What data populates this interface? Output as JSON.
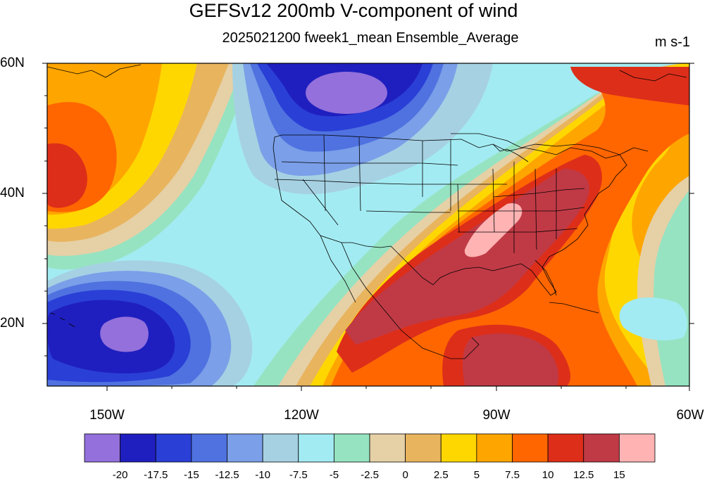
{
  "title": "GEFSv12 200mb V-component of wind",
  "subtitle": "2025021200 fweek1_mean Ensemble_Average",
  "units": "m s-1",
  "lat_labels": [
    "60N",
    "40N",
    "20N"
  ],
  "lon_labels": [
    "150W",
    "120W",
    "90W",
    "60W"
  ],
  "colorbar": {
    "colors": [
      "#9370db",
      "#1f1fbf",
      "#2a3fd6",
      "#4f72e0",
      "#7b9fe8",
      "#a6d1e3",
      "#a3ebf2",
      "#96e3c2",
      "#e6d0a6",
      "#e8b45e",
      "#ffd700",
      "#ffa500",
      "#ff6600",
      "#dd2e1a",
      "#c03a45",
      "#ffb3b3"
    ],
    "labels": [
      "-20",
      "-17.5",
      "-15",
      "-12.5",
      "-10",
      "-7.5",
      "-5",
      "-2.5",
      "0",
      "2.5",
      "5",
      "7.5",
      "10",
      "12.5",
      "15"
    ]
  },
  "map": {
    "lon_range": [
      -160,
      -60
    ],
    "lat_range": [
      10,
      60
    ],
    "variable": "V-component of wind",
    "level": "200mb"
  }
}
